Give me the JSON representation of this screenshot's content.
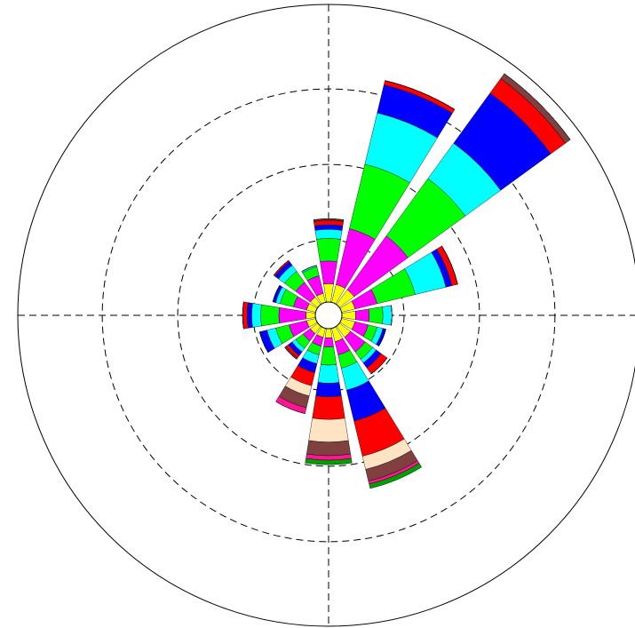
{
  "chart_data": {
    "type": "windrose",
    "categories": [
      null,
      null,
      null,
      null,
      null,
      null,
      null,
      null,
      null,
      null,
      null,
      null,
      null,
      null,
      null,
      null
    ],
    "ylim": [
      0,
      20.6
    ],
    "yticks": [
      5,
      10,
      15
    ],
    "grid": true,
    "series": [
      {
        "color": "#ffff00",
        "values": [
          2.1,
          2.1,
          2.1,
          1.8,
          1.8,
          1.8,
          1.8,
          1.8,
          1.5,
          1.5,
          1.5,
          1.5,
          1.5,
          1.5,
          1.5,
          1.5
        ]
      },
      {
        "color": "#ff00ff",
        "values": [
          1.5,
          3.8,
          4.4,
          1.5,
          0.9,
          0.9,
          1.2,
          0.9,
          0.6,
          0.6,
          0.6,
          1.2,
          1.8,
          0.9,
          1.2,
          1.2
        ]
      },
      {
        "color": "#00ff00",
        "values": [
          1.5,
          4.4,
          4.7,
          2.6,
          0.9,
          0.6,
          0.6,
          0.9,
          1.2,
          0.6,
          0.6,
          0.9,
          1.2,
          0.9,
          0.9,
          0.6
        ]
      },
      {
        "color": "#00ffff",
        "values": [
          0.6,
          3.5,
          2.9,
          2.1,
          0.6,
          0.4,
          0.3,
          1.5,
          1.2,
          0.6,
          0.3,
          0.6,
          0.6,
          0.3,
          0.5,
          0.1
        ]
      },
      {
        "color": "#0000ff",
        "values": [
          0.3,
          1.9,
          4.1,
          0.4,
          0,
          0.2,
          0.4,
          2.1,
          0.9,
          0.6,
          0.3,
          0.5,
          0.3,
          0.2,
          0.3,
          0
        ]
      },
      {
        "color": "#ff0000",
        "values": [
          0.3,
          0.3,
          1.2,
          0.4,
          0,
          0,
          0.5,
          2.4,
          1.5,
          0.9,
          0.2,
          0,
          0.3,
          0,
          0.1,
          0
        ]
      },
      {
        "color": "#ffe4c4",
        "values": [
          0,
          0,
          0,
          0,
          0,
          0,
          0,
          0.9,
          1.5,
          0.7,
          0,
          0,
          0,
          0,
          0,
          0
        ]
      },
      {
        "color": "#804040",
        "values": [
          0.1,
          0,
          0.4,
          0,
          0,
          0,
          0,
          0.8,
          0.9,
          0.8,
          0.1,
          0,
          0,
          0,
          0,
          0
        ]
      },
      {
        "color": "#ff1493",
        "values": [
          0,
          0,
          0,
          0,
          0,
          0,
          0,
          0.2,
          0.3,
          0.4,
          0,
          0,
          0,
          0,
          0,
          0
        ]
      },
      {
        "color": "#00a000",
        "values": [
          0,
          0,
          0,
          0,
          0,
          0,
          0,
          0.3,
          0.3,
          0,
          0,
          0,
          0,
          0,
          0,
          0
        ]
      }
    ]
  }
}
